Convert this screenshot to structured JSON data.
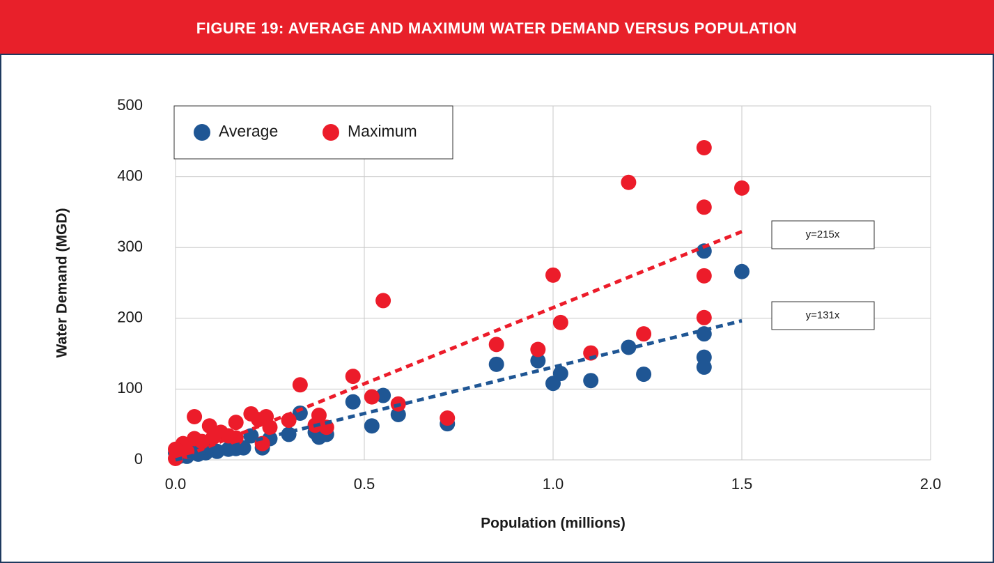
{
  "chart_data": {
    "type": "scatter",
    "title": "FIGURE 19: AVERAGE AND MAXIMUM WATER DEMAND VERSUS POPULATION",
    "xlabel": "Population (millions)",
    "ylabel": "Water Demand (MGD)",
    "xlim": [
      0,
      2
    ],
    "ylim": [
      0,
      500
    ],
    "xticks": [
      {
        "value": 0,
        "label": "0.0"
      },
      0.5,
      {
        "value": 1,
        "label": "1.0"
      },
      1.5,
      {
        "value": 2,
        "label": "2.0"
      }
    ],
    "yticks": [
      0,
      100,
      200,
      300,
      400,
      500
    ],
    "grid": true,
    "legend": "top-left",
    "series": [
      {
        "name": "Average",
        "color": "#1f5694",
        "x": [
          1.5,
          1.4,
          1.4,
          1.4,
          1.4,
          1.24,
          1.2,
          1.1,
          1.02,
          1.0,
          0.96,
          0.85,
          0.72,
          0.59,
          0.55,
          0.52,
          0.47,
          0.4,
          0.38,
          0.37,
          0.33,
          0.3,
          0.25,
          0.23,
          0.2,
          0.18,
          0.16,
          0.14,
          0.11,
          0.08,
          0.06,
          0.03,
          0.0,
          0.05,
          0.09,
          0.01
        ],
        "values": [
          266,
          295,
          178,
          145,
          131,
          121,
          159,
          112,
          122,
          108,
          140,
          135,
          51,
          64,
          91,
          48,
          82,
          36,
          32,
          39,
          66,
          36,
          30,
          17,
          34,
          17,
          16,
          15,
          12,
          10,
          8,
          5,
          10,
          15,
          20,
          5
        ]
      },
      {
        "name": "Maximum",
        "color": "#ec1c2a",
        "x": [
          1.4,
          1.2,
          1.5,
          1.4,
          1.0,
          1.4,
          0.55,
          1.4,
          1.02,
          1.24,
          0.85,
          0.96,
          1.1,
          0.33,
          0.47,
          0.52,
          0.59,
          0.72,
          0.38,
          0.37,
          0.4,
          0.3,
          0.24,
          0.25,
          0.2,
          0.22,
          0.16,
          0.23,
          0.05,
          0.09,
          0.12,
          0.14,
          0.1,
          0.07,
          0.05,
          0.02,
          0.0,
          0.0,
          0.03,
          0.16
        ],
        "values": [
          441,
          392,
          384,
          357,
          261,
          260,
          225,
          201,
          194,
          178,
          163,
          156,
          151,
          106,
          118,
          89,
          79,
          59,
          63,
          49,
          46,
          56,
          61,
          46,
          65,
          57,
          53,
          23,
          61,
          48,
          39,
          34,
          32,
          26,
          30,
          23,
          15,
          2,
          12,
          31
        ]
      }
    ],
    "trendlines": [
      {
        "label": "y=215x",
        "slope": 215,
        "color": "#ec1c2a",
        "xlim": [
          0,
          1.5
        ]
      },
      {
        "label": "y=131x",
        "slope": 131,
        "color": "#1f5694",
        "xlim": [
          0,
          1.5
        ]
      }
    ]
  }
}
